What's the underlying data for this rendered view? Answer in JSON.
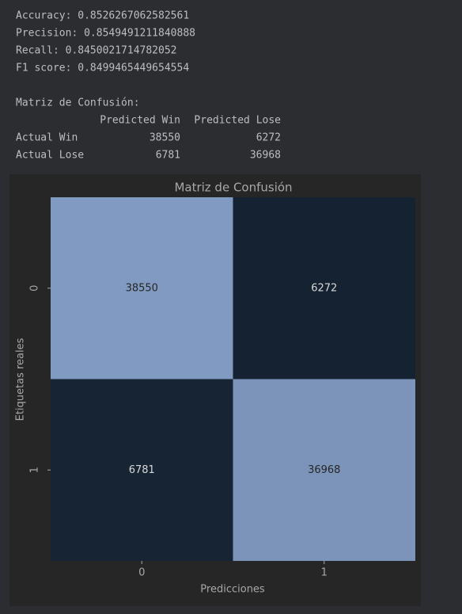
{
  "console": {
    "lines": [
      "Accuracy: 0.8526267062582561",
      "Precision: 0.8549491211840888",
      "Recall: 0.8450021714782052",
      "F1 score: 0.8499465449654554"
    ],
    "matrix_title": "Matriz de Confusión:",
    "columns": [
      "Predicted Win",
      "Predicted Lose"
    ],
    "rows": [
      {
        "label": "Actual Win",
        "values": [
          38550,
          6272
        ]
      },
      {
        "label": "Actual Lose",
        "values": [
          6781,
          36968
        ]
      }
    ]
  },
  "chart_data": {
    "type": "heatmap",
    "title": "Matriz de Confusión",
    "x_label": "Predicciones",
    "y_label": "Etiquetas reales",
    "x_categories": [
      "0",
      "1"
    ],
    "y_categories": [
      "0",
      "1"
    ],
    "values": [
      [
        38550,
        6272
      ],
      [
        6781,
        36968
      ]
    ],
    "color_low": "#152232",
    "color_high": "#819ac1"
  }
}
